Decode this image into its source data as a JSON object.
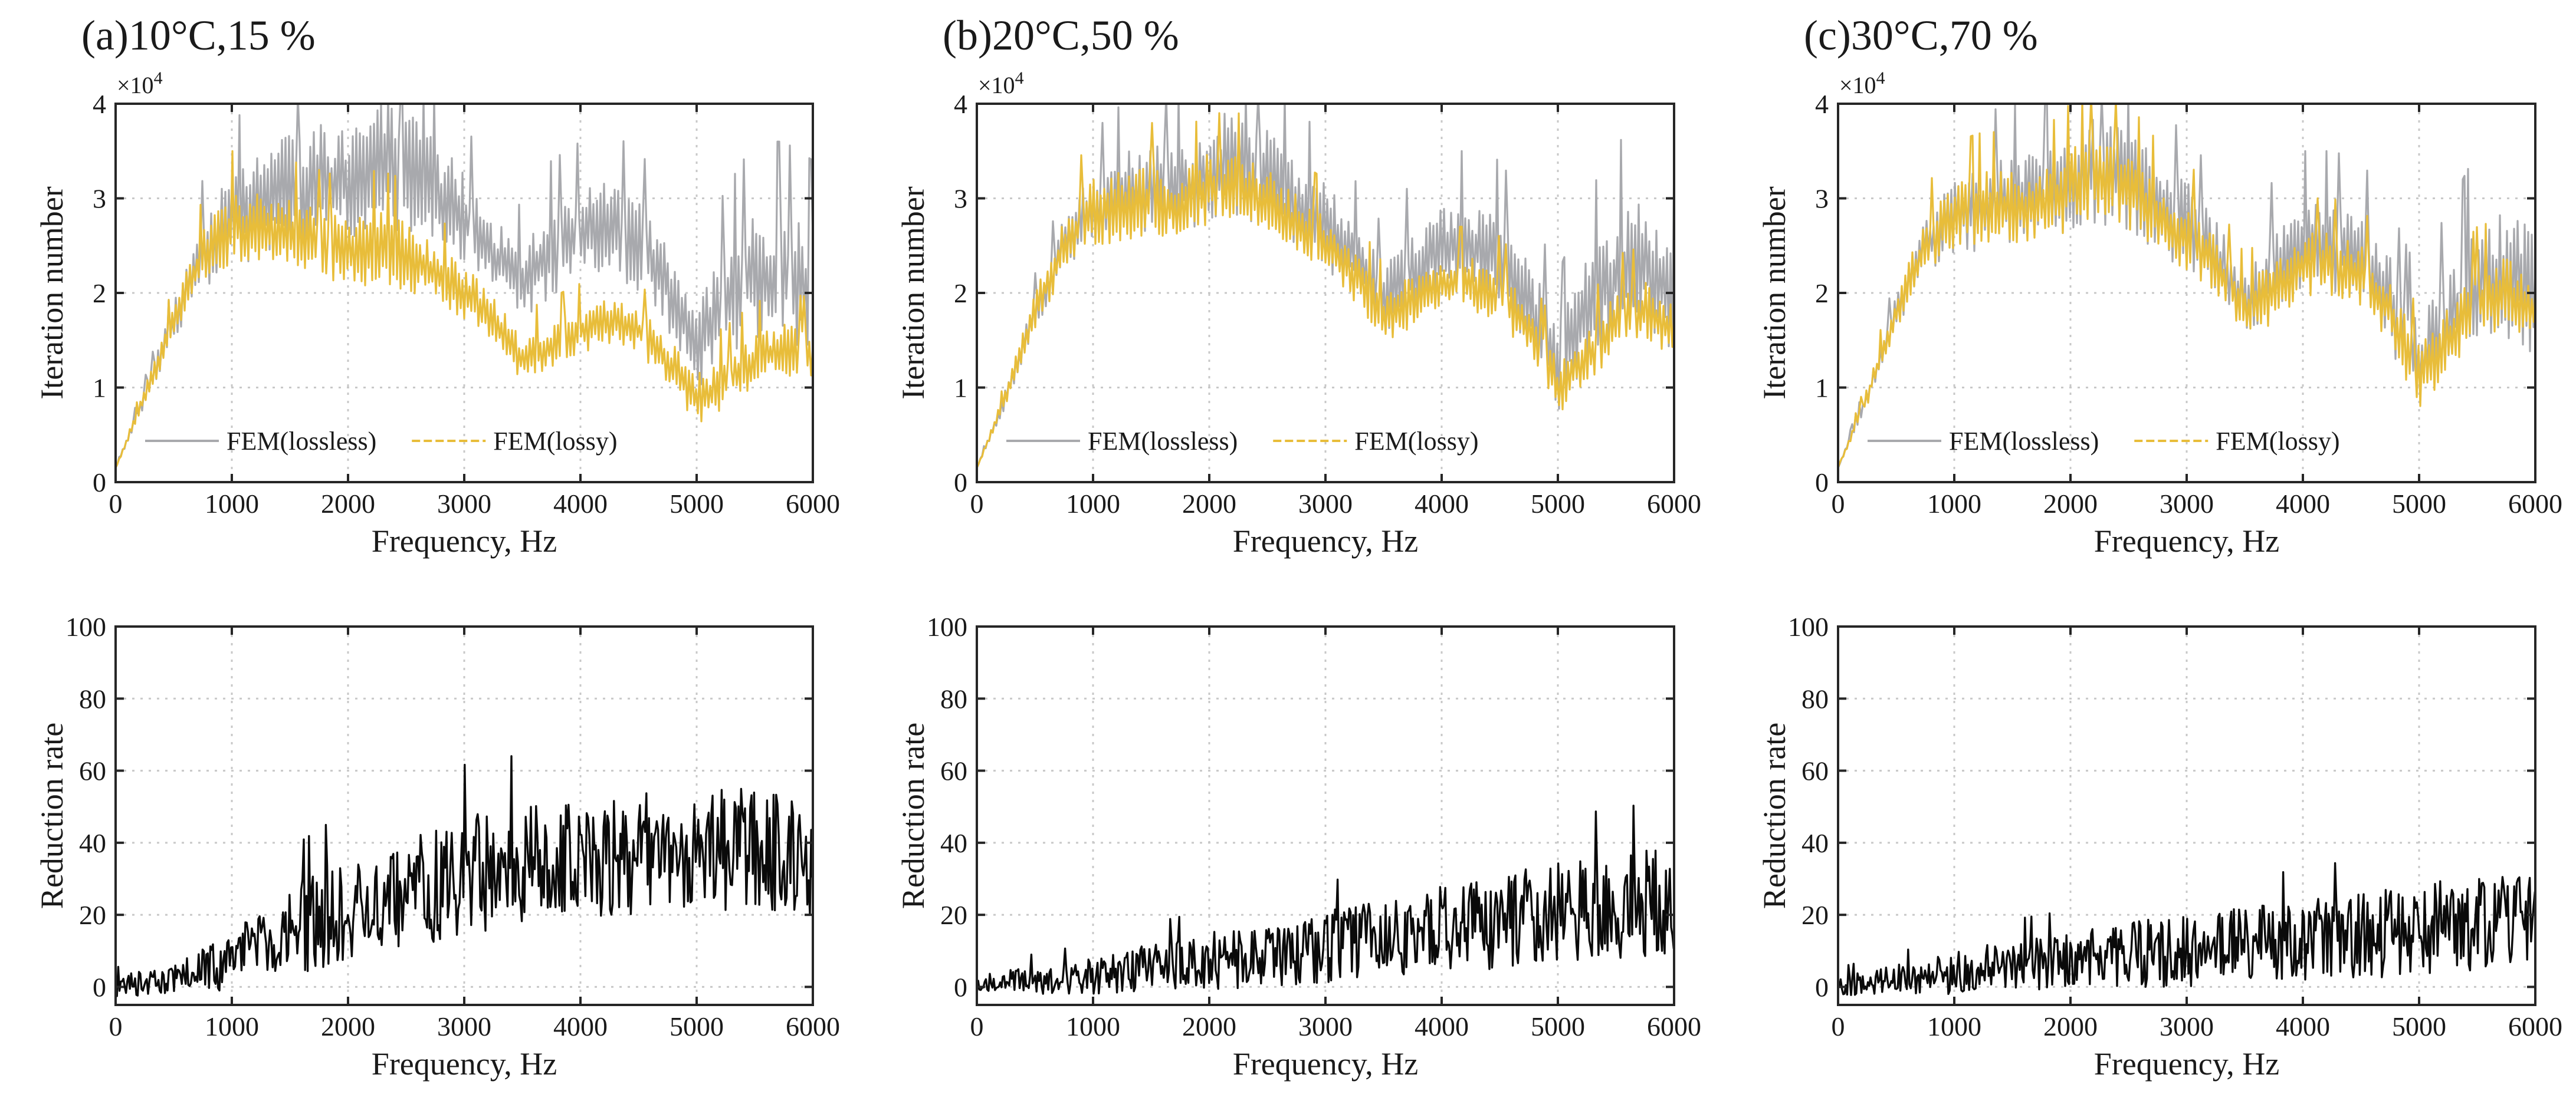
{
  "colors": {
    "lossless": "#a8a9ad",
    "lossy": "#e8bd3a",
    "reduction": "#0a0a0a",
    "grid": "#c8c8c8",
    "axis": "#262626"
  },
  "chart_data": [
    {
      "id": "a-iter",
      "type": "line",
      "title": "(a)10°C,15 %",
      "xlabel": "Frequency, Hz",
      "ylabel": "Iteration number",
      "exponent_label": "×10",
      "exponent_power": "4",
      "xlim": [
        0,
        6000
      ],
      "ylim": [
        0,
        4
      ],
      "xticks": [
        0,
        1000,
        2000,
        3000,
        4000,
        5000,
        6000
      ],
      "xtick_labels": [
        "0",
        "1000",
        "2000",
        "3000",
        "4000",
        "5000",
        "6000"
      ],
      "yticks": [
        0,
        1,
        2,
        3,
        4
      ],
      "ytick_labels": [
        "0",
        "1",
        "2",
        "3",
        "4"
      ],
      "grid": true,
      "legend": {
        "position": "lower-left",
        "entries": [
          "FEM(lossless)",
          "FEM(lossy)"
        ]
      },
      "series": [
        {
          "name": "FEM(lossless)",
          "color": "#a8a9ad",
          "style": "solid",
          "x": [
            0,
            250,
            500,
            750,
            1000,
            1250,
            1500,
            1750,
            2000,
            2250,
            2500,
            2750,
            3000,
            3250,
            3500,
            3750,
            4000,
            4250,
            4500,
            4750,
            5000,
            5250,
            5500,
            5750,
            6000
          ],
          "y": [
            0.15,
            0.9,
            1.7,
            2.4,
            2.8,
            2.9,
            3.1,
            3.1,
            3.2,
            3.35,
            3.3,
            3.05,
            2.8,
            2.4,
            2.1,
            2.4,
            2.6,
            2.7,
            2.5,
            2.1,
            1.4,
            1.9,
            2.2,
            2.2,
            2.0
          ],
          "noise": [
            0.0,
            0.1,
            0.2,
            0.4,
            0.5,
            0.6,
            0.7,
            0.7,
            0.7,
            0.7,
            0.7,
            0.6,
            0.5,
            0.4,
            0.4,
            0.5,
            0.5,
            0.5,
            0.5,
            0.5,
            0.5,
            0.6,
            0.7,
            0.7,
            0.7
          ]
        },
        {
          "name": "FEM(lossy)",
          "color": "#e8bd3a",
          "style": "dashed",
          "x": [
            0,
            250,
            500,
            750,
            1000,
            1250,
            1500,
            1750,
            2000,
            2250,
            2500,
            2750,
            3000,
            3250,
            3500,
            3750,
            4000,
            4250,
            4500,
            4750,
            5000,
            5250,
            5500,
            5750,
            6000
          ],
          "y": [
            0.15,
            0.9,
            1.7,
            2.4,
            2.7,
            2.7,
            2.6,
            2.5,
            2.4,
            2.5,
            2.4,
            2.2,
            2.0,
            1.7,
            1.3,
            1.45,
            1.6,
            1.7,
            1.6,
            1.3,
            0.85,
            1.05,
            1.3,
            1.4,
            1.35
          ],
          "noise": [
            0.0,
            0.1,
            0.2,
            0.3,
            0.4,
            0.4,
            0.4,
            0.4,
            0.4,
            0.4,
            0.4,
            0.3,
            0.3,
            0.3,
            0.25,
            0.25,
            0.25,
            0.25,
            0.25,
            0.25,
            0.3,
            0.3,
            0.3,
            0.3,
            0.3
          ]
        }
      ]
    },
    {
      "id": "b-iter",
      "type": "line",
      "title": "(b)20°C,50 %",
      "xlabel": "Frequency, Hz",
      "ylabel": "Iteration number",
      "exponent_label": "×10",
      "exponent_power": "4",
      "xlim": [
        0,
        6000
      ],
      "ylim": [
        0,
        4
      ],
      "xticks": [
        0,
        1000,
        2000,
        3000,
        4000,
        5000,
        6000
      ],
      "xtick_labels": [
        "0",
        "1000",
        "2000",
        "3000",
        "4000",
        "5000",
        "6000"
      ],
      "yticks": [
        0,
        1,
        2,
        3,
        4
      ],
      "ytick_labels": [
        "0",
        "1",
        "2",
        "3",
        "4"
      ],
      "grid": true,
      "legend": {
        "position": "lower-left",
        "entries": [
          "FEM(lossless)",
          "FEM(lossy)"
        ]
      },
      "series": [
        {
          "name": "FEM(lossless)",
          "color": "#a8a9ad",
          "style": "solid",
          "x": [
            0,
            250,
            500,
            750,
            1000,
            1250,
            1500,
            1750,
            2000,
            2250,
            2500,
            2750,
            3000,
            3250,
            3500,
            3750,
            4000,
            4250,
            4500,
            4750,
            5000,
            5250,
            5500,
            5750,
            6000
          ],
          "y": [
            0.15,
            0.9,
            1.8,
            2.5,
            2.9,
            3.0,
            3.1,
            3.1,
            3.3,
            3.4,
            3.2,
            2.9,
            2.7,
            2.4,
            1.9,
            2.2,
            2.5,
            2.5,
            2.4,
            1.9,
            1.2,
            1.8,
            2.2,
            2.3,
            2.0
          ],
          "noise": [
            0.0,
            0.1,
            0.2,
            0.3,
            0.4,
            0.5,
            0.5,
            0.5,
            0.6,
            0.6,
            0.6,
            0.5,
            0.5,
            0.4,
            0.4,
            0.5,
            0.5,
            0.5,
            0.5,
            0.5,
            0.5,
            0.6,
            0.7,
            0.7,
            0.7
          ]
        },
        {
          "name": "FEM(lossy)",
          "color": "#e8bd3a",
          "style": "dashed",
          "x": [
            0,
            250,
            500,
            750,
            1000,
            1250,
            1500,
            1750,
            2000,
            2250,
            2500,
            2750,
            3000,
            3250,
            3500,
            3750,
            4000,
            4250,
            4500,
            4750,
            5000,
            5250,
            5500,
            5750,
            6000
          ],
          "y": [
            0.15,
            0.9,
            1.8,
            2.5,
            2.9,
            2.9,
            3.0,
            2.9,
            3.1,
            3.1,
            3.0,
            2.7,
            2.5,
            2.2,
            1.7,
            1.9,
            2.1,
            2.1,
            2.0,
            1.6,
            1.0,
            1.3,
            1.7,
            1.8,
            1.6
          ],
          "noise": [
            0.0,
            0.1,
            0.2,
            0.3,
            0.4,
            0.4,
            0.4,
            0.4,
            0.4,
            0.4,
            0.4,
            0.35,
            0.35,
            0.3,
            0.3,
            0.3,
            0.3,
            0.3,
            0.3,
            0.3,
            0.3,
            0.3,
            0.35,
            0.35,
            0.35
          ]
        }
      ]
    },
    {
      "id": "c-iter",
      "type": "line",
      "title": "(c)30°C,70 %",
      "xlabel": "Frequency, Hz",
      "ylabel": "Iteration number",
      "exponent_label": "×10",
      "exponent_power": "4",
      "xlim": [
        0,
        6000
      ],
      "ylim": [
        0,
        4
      ],
      "xticks": [
        0,
        1000,
        2000,
        3000,
        4000,
        5000,
        6000
      ],
      "xtick_labels": [
        "0",
        "1000",
        "2000",
        "3000",
        "4000",
        "5000",
        "6000"
      ],
      "yticks": [
        0,
        1,
        2,
        3,
        4
      ],
      "ytick_labels": [
        "0",
        "1",
        "2",
        "3",
        "4"
      ],
      "grid": true,
      "legend": {
        "position": "lower-left",
        "entries": [
          "FEM(lossless)",
          "FEM(lossy)"
        ]
      },
      "series": [
        {
          "name": "FEM(lossless)",
          "color": "#a8a9ad",
          "style": "solid",
          "x": [
            0,
            250,
            500,
            750,
            1000,
            1250,
            1500,
            1750,
            2000,
            2250,
            2500,
            2750,
            3000,
            3250,
            3500,
            3750,
            4000,
            4250,
            4500,
            4750,
            5000,
            5250,
            5500,
            5750,
            6000
          ],
          "y": [
            0.15,
            0.9,
            1.8,
            2.5,
            2.8,
            2.9,
            3.0,
            3.0,
            3.2,
            3.3,
            3.2,
            2.9,
            2.7,
            2.4,
            1.9,
            2.2,
            2.5,
            2.5,
            2.4,
            1.9,
            1.2,
            1.7,
            2.1,
            2.2,
            2.0
          ],
          "noise": [
            0.0,
            0.1,
            0.2,
            0.3,
            0.4,
            0.5,
            0.5,
            0.5,
            0.6,
            0.6,
            0.6,
            0.5,
            0.5,
            0.4,
            0.4,
            0.5,
            0.5,
            0.5,
            0.5,
            0.5,
            0.5,
            0.6,
            0.7,
            0.7,
            0.7
          ]
        },
        {
          "name": "FEM(lossy)",
          "color": "#e8bd3a",
          "style": "dashed",
          "x": [
            0,
            250,
            500,
            750,
            1000,
            1250,
            1500,
            1750,
            2000,
            2250,
            2500,
            2750,
            3000,
            3250,
            3500,
            3750,
            4000,
            4250,
            4500,
            4750,
            5000,
            5250,
            5500,
            5750,
            6000
          ],
          "y": [
            0.15,
            0.9,
            1.8,
            2.5,
            2.8,
            2.9,
            2.9,
            2.9,
            3.1,
            3.2,
            3.1,
            2.8,
            2.6,
            2.3,
            1.8,
            2.0,
            2.3,
            2.3,
            2.2,
            1.8,
            1.1,
            1.5,
            1.9,
            2.0,
            1.8
          ],
          "noise": [
            0.0,
            0.1,
            0.2,
            0.3,
            0.4,
            0.4,
            0.4,
            0.4,
            0.45,
            0.45,
            0.45,
            0.4,
            0.4,
            0.35,
            0.3,
            0.35,
            0.35,
            0.35,
            0.35,
            0.35,
            0.35,
            0.4,
            0.4,
            0.4,
            0.4
          ]
        }
      ]
    },
    {
      "id": "a-red",
      "type": "line",
      "title": "",
      "xlabel": "Frequency, Hz",
      "ylabel": "Reduction rate",
      "xlim": [
        0,
        6000
      ],
      "ylim": [
        -5,
        100
      ],
      "xticks": [
        0,
        1000,
        2000,
        3000,
        4000,
        5000,
        6000
      ],
      "xtick_labels": [
        "0",
        "1000",
        "2000",
        "3000",
        "4000",
        "5000",
        "6000"
      ],
      "yticks": [
        0,
        20,
        40,
        60,
        80,
        100
      ],
      "ytick_labels": [
        "0",
        "20",
        "40",
        "60",
        "80",
        "100"
      ],
      "grid": true,
      "series": [
        {
          "name": "Reduction rate",
          "color": "#0a0a0a",
          "style": "solid",
          "x": [
            0,
            500,
            1000,
            1500,
            2000,
            2500,
            3000,
            3500,
            4000,
            4500,
            5000,
            5500,
            6000
          ],
          "y": [
            0,
            2,
            7,
            15,
            22,
            27,
            31,
            34,
            36,
            37,
            38,
            38,
            37
          ],
          "noise": [
            3,
            4,
            8,
            13,
            15,
            16,
            17,
            17,
            17,
            17,
            17,
            17,
            17
          ]
        }
      ]
    },
    {
      "id": "b-red",
      "type": "line",
      "title": "",
      "xlabel": "Frequency, Hz",
      "ylabel": "Reduction rate",
      "xlim": [
        0,
        6000
      ],
      "ylim": [
        -5,
        100
      ],
      "xticks": [
        0,
        1000,
        2000,
        3000,
        4000,
        5000,
        6000
      ],
      "xtick_labels": [
        "0",
        "1000",
        "2000",
        "3000",
        "4000",
        "5000",
        "6000"
      ],
      "yticks": [
        0,
        20,
        40,
        60,
        80,
        100
      ],
      "ytick_labels": [
        "0",
        "20",
        "40",
        "60",
        "80",
        "100"
      ],
      "grid": true,
      "series": [
        {
          "name": "Reduction rate",
          "color": "#0a0a0a",
          "style": "solid",
          "x": [
            0,
            500,
            1000,
            1500,
            2000,
            2500,
            3000,
            3500,
            4000,
            4500,
            5000,
            5500,
            6000
          ],
          "y": [
            0,
            2,
            3,
            5,
            7,
            9,
            11,
            13,
            16,
            18,
            21,
            23,
            24
          ],
          "noise": [
            3,
            4,
            5,
            7,
            8,
            9,
            10,
            11,
            12,
            13,
            14,
            15,
            15
          ]
        }
      ]
    },
    {
      "id": "c-red",
      "type": "line",
      "title": "",
      "xlabel": "Frequency, Hz",
      "ylabel": "Reduction rate",
      "xlim": [
        0,
        6000
      ],
      "ylim": [
        -5,
        100
      ],
      "xticks": [
        0,
        1000,
        2000,
        3000,
        4000,
        5000,
        6000
      ],
      "xtick_labels": [
        "0",
        "1000",
        "2000",
        "3000",
        "4000",
        "5000",
        "6000"
      ],
      "yticks": [
        0,
        20,
        40,
        60,
        80,
        100
      ],
      "ytick_labels": [
        "0",
        "20",
        "40",
        "60",
        "80",
        "100"
      ],
      "grid": true,
      "series": [
        {
          "name": "Reduction rate",
          "color": "#0a0a0a",
          "style": "solid",
          "x": [
            0,
            500,
            1000,
            1500,
            2000,
            2500,
            3000,
            3500,
            4000,
            4500,
            5000,
            5500,
            6000
          ],
          "y": [
            0,
            2,
            4,
            6,
            7,
            9,
            10,
            12,
            13,
            14,
            16,
            17,
            18
          ],
          "noise": [
            3,
            4,
            6,
            7,
            8,
            9,
            10,
            10,
            11,
            12,
            13,
            13,
            14
          ]
        }
      ]
    }
  ]
}
